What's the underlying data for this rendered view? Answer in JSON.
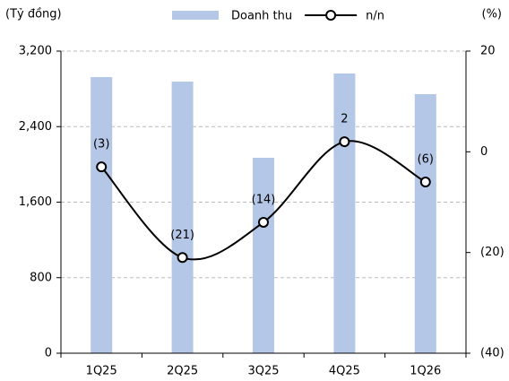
{
  "chart_data": {
    "type": "combo",
    "y_axis_label": "(Tỷ đồng)",
    "y2_axis_label": "(%)",
    "categories": [
      "1Q25",
      "2Q25",
      "3Q25",
      "4Q25",
      "1Q26"
    ],
    "series": [
      {
        "name": "Doanh thu",
        "type": "bar",
        "color": "#b4c7e7",
        "values": [
          2925,
          2877,
          2070,
          2963,
          2744
        ]
      },
      {
        "name": "n/n",
        "type": "line",
        "axis": "y2",
        "color": "#000000",
        "values": [
          -3,
          -21,
          -14,
          2,
          -6
        ],
        "value_labels": [
          "(3)",
          "(21)",
          "(14)",
          "2",
          "(6)"
        ]
      }
    ],
    "ylim": [
      0,
      3200
    ],
    "yticks": [
      0,
      {
        "value": 800,
        "label": "800"
      },
      {
        "value": 1600,
        "label": "1,600"
      },
      {
        "value": 2400,
        "label": "2,400"
      },
      {
        "value": 3200,
        "label": "3,200"
      }
    ],
    "y2lim": [
      -40,
      20
    ],
    "y2ticks": [
      {
        "value": -40,
        "label": "(40)"
      },
      {
        "value": -20,
        "label": "(20)"
      },
      0,
      20
    ],
    "grid": true
  }
}
